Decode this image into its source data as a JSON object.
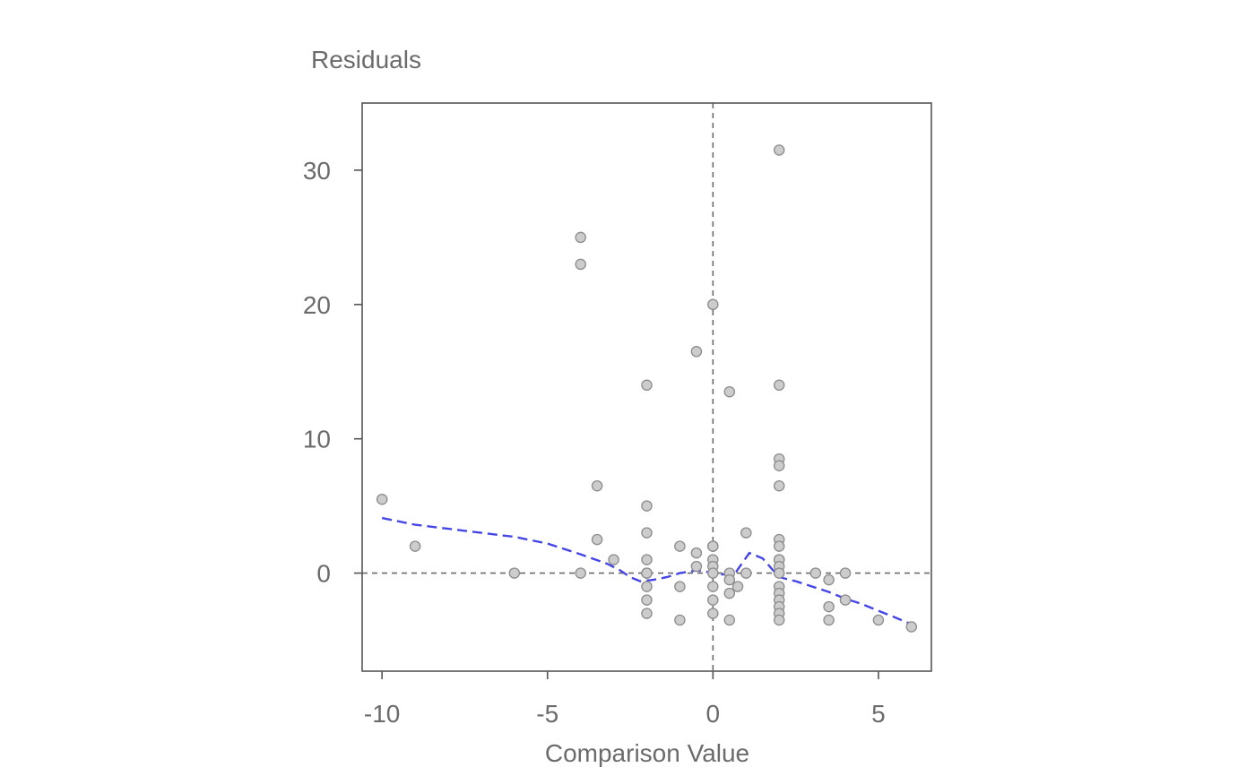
{
  "chart_data": {
    "type": "scatter",
    "ylabel": "Residuals",
    "xlabel": "Comparison Value",
    "xlim": [
      -10.6,
      6.6
    ],
    "ylim": [
      -7.3,
      35.0
    ],
    "x_ticks": [
      -10,
      -5,
      0,
      5
    ],
    "y_ticks": [
      0,
      10,
      20,
      30
    ],
    "reference_lines": {
      "vertical_x": 0,
      "horizontal_y": 0
    },
    "grid": false,
    "points": [
      [
        -10,
        5.5
      ],
      [
        -9,
        2
      ],
      [
        -6,
        0
      ],
      [
        -4,
        25
      ],
      [
        -4,
        23
      ],
      [
        -4,
        0
      ],
      [
        -3.5,
        6.5
      ],
      [
        -3.5,
        2.5
      ],
      [
        -3,
        1
      ],
      [
        -2,
        14
      ],
      [
        -2,
        5
      ],
      [
        -2,
        3
      ],
      [
        -2,
        1
      ],
      [
        -2,
        0
      ],
      [
        -2,
        0
      ],
      [
        -2,
        -1
      ],
      [
        -2,
        -2
      ],
      [
        -2,
        -3
      ],
      [
        -1,
        2
      ],
      [
        -1,
        -1
      ],
      [
        -1,
        -3.5
      ],
      [
        -0.5,
        16.5
      ],
      [
        -0.5,
        1.5
      ],
      [
        -0.5,
        0.5
      ],
      [
        0,
        20
      ],
      [
        0,
        2
      ],
      [
        0,
        2
      ],
      [
        0,
        1
      ],
      [
        0,
        0.5
      ],
      [
        0,
        0
      ],
      [
        0,
        -1
      ],
      [
        0,
        -2
      ],
      [
        0,
        -3
      ],
      [
        0.5,
        13.5
      ],
      [
        0.5,
        0
      ],
      [
        0.5,
        -0.5
      ],
      [
        0.5,
        -1.5
      ],
      [
        0.5,
        -3.5
      ],
      [
        0.75,
        -1
      ],
      [
        1,
        3
      ],
      [
        1,
        0
      ],
      [
        2,
        31.5
      ],
      [
        2,
        14
      ],
      [
        2,
        8.5
      ],
      [
        2,
        8
      ],
      [
        2,
        6.5
      ],
      [
        2,
        2.5
      ],
      [
        2,
        2
      ],
      [
        2,
        1
      ],
      [
        2,
        1
      ],
      [
        2,
        0.5
      ],
      [
        2,
        0
      ],
      [
        2,
        -1
      ],
      [
        2,
        -1.5
      ],
      [
        2,
        -2
      ],
      [
        2,
        -2.5
      ],
      [
        2,
        -3
      ],
      [
        2,
        -3.5
      ],
      [
        3.1,
        0
      ],
      [
        3.5,
        -0.5
      ],
      [
        3.5,
        -2.5
      ],
      [
        3.5,
        -3.5
      ],
      [
        4,
        0
      ],
      [
        4,
        -2
      ],
      [
        5,
        -3.5
      ],
      [
        6,
        -4
      ]
    ],
    "smoother": [
      [
        -10,
        4.1
      ],
      [
        -9,
        3.6
      ],
      [
        -8,
        3.3
      ],
      [
        -7,
        3.0
      ],
      [
        -6,
        2.7
      ],
      [
        -5,
        2.2
      ],
      [
        -4,
        1.4
      ],
      [
        -3.2,
        0.7
      ],
      [
        -2.8,
        0.2
      ],
      [
        -2.5,
        -0.3
      ],
      [
        -2.2,
        -0.6
      ],
      [
        -1.8,
        -0.5
      ],
      [
        -1.4,
        -0.3
      ],
      [
        -1,
        0
      ],
      [
        -0.5,
        0.2
      ],
      [
        -0.2,
        0.1
      ],
      [
        0,
        0
      ],
      [
        0.2,
        -0.1
      ],
      [
        0.5,
        -0.1
      ],
      [
        0.7,
        0.1
      ],
      [
        1.1,
        1.5
      ],
      [
        1.5,
        1.1
      ],
      [
        2,
        -0.3
      ],
      [
        2.5,
        -0.6
      ],
      [
        3,
        -1.0
      ],
      [
        3.5,
        -1.4
      ],
      [
        4,
        -1.9
      ],
      [
        4.5,
        -2.3
      ],
      [
        5,
        -2.8
      ],
      [
        5.5,
        -3.3
      ],
      [
        6,
        -3.8
      ]
    ],
    "colors": {
      "points_fill": "#cccccc",
      "points_stroke": "#8c8c8c",
      "smoother": "#4646e6",
      "reference_lines": "#6b6b6b",
      "axes": "#555555",
      "text": "#6b6b6b"
    }
  }
}
